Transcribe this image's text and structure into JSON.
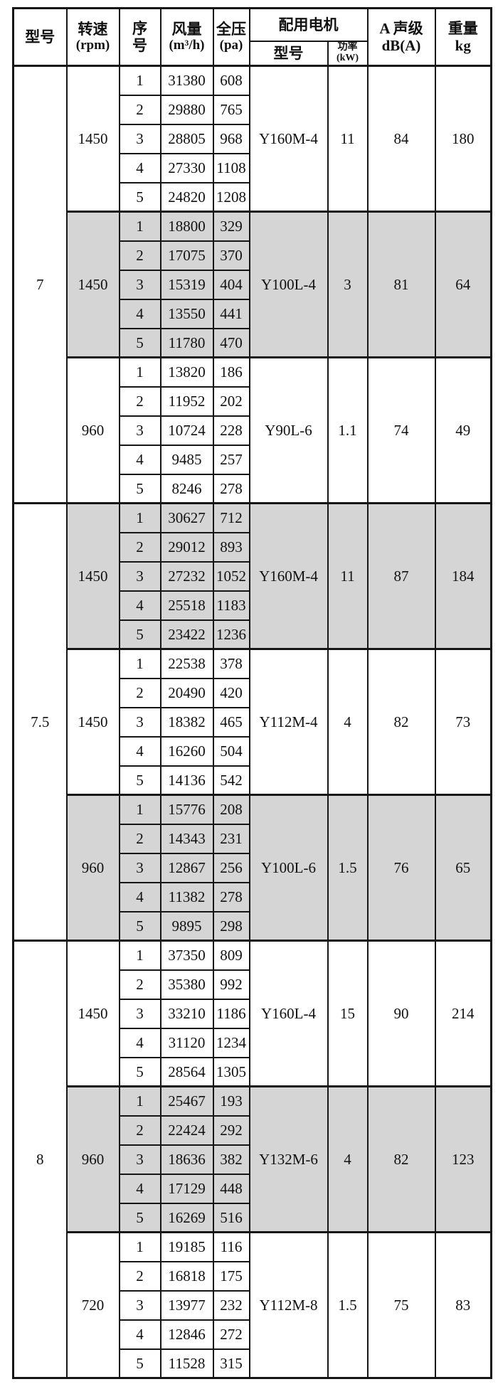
{
  "table": {
    "title_hint": "fan-performance-spec-table",
    "colors": {
      "shade_bg": "#d5d5d5",
      "header_bg": "#d5d5d5",
      "border": "#161616",
      "page_bg": "#ffffff"
    },
    "header": {
      "model": "型号",
      "speed_l1": "转速",
      "speed_l2": "(rpm)",
      "serial_l1": "序",
      "serial_l2": "号",
      "airflow_l1": "风量",
      "airflow_l2": "(m³/h)",
      "pressure_l1": "全压",
      "pressure_l2": "(pa)",
      "motor_group": "配用电机",
      "motor_model": "型号",
      "motor_power_l1": "功率",
      "motor_power_l2": "(kW)",
      "noise_l1": "A 声级",
      "noise_l2": "dB(A)",
      "weight_l1": "重量",
      "weight_l2": "kg"
    },
    "groups": [
      {
        "model": "7",
        "sections": [
          {
            "rpm": "1450",
            "shaded": false,
            "motor": "Y160M-4",
            "power": "11",
            "noise": "84",
            "weight": "180",
            "rows": [
              [
                "1",
                "31380",
                "608"
              ],
              [
                "2",
                "29880",
                "765"
              ],
              [
                "3",
                "28805",
                "968"
              ],
              [
                "4",
                "27330",
                "1108"
              ],
              [
                "5",
                "24820",
                "1208"
              ]
            ]
          },
          {
            "rpm": "1450",
            "shaded": true,
            "motor": "Y100L-4",
            "power": "3",
            "noise": "81",
            "weight": "64",
            "rows": [
              [
                "1",
                "18800",
                "329"
              ],
              [
                "2",
                "17075",
                "370"
              ],
              [
                "3",
                "15319",
                "404"
              ],
              [
                "4",
                "13550",
                "441"
              ],
              [
                "5",
                "11780",
                "470"
              ]
            ]
          },
          {
            "rpm": "960",
            "shaded": false,
            "motor": "Y90L-6",
            "power": "1.1",
            "noise": "74",
            "weight": "49",
            "rows": [
              [
                "1",
                "13820",
                "186"
              ],
              [
                "2",
                "11952",
                "202"
              ],
              [
                "3",
                "10724",
                "228"
              ],
              [
                "4",
                "9485",
                "257"
              ],
              [
                "5",
                "8246",
                "278"
              ]
            ]
          }
        ]
      },
      {
        "model": "7.5",
        "sections": [
          {
            "rpm": "1450",
            "shaded": true,
            "motor": "Y160M-4",
            "power": "11",
            "noise": "87",
            "weight": "184",
            "rows": [
              [
                "1",
                "30627",
                "712"
              ],
              [
                "2",
                "29012",
                "893"
              ],
              [
                "3",
                "27232",
                "1052"
              ],
              [
                "4",
                "25518",
                "1183"
              ],
              [
                "5",
                "23422",
                "1236"
              ]
            ]
          },
          {
            "rpm": "1450",
            "shaded": false,
            "motor": "Y112M-4",
            "power": "4",
            "noise": "82",
            "weight": "73",
            "rows": [
              [
                "1",
                "22538",
                "378"
              ],
              [
                "2",
                "20490",
                "420"
              ],
              [
                "3",
                "18382",
                "465"
              ],
              [
                "4",
                "16260",
                "504"
              ],
              [
                "5",
                "14136",
                "542"
              ]
            ]
          },
          {
            "rpm": "960",
            "shaded": true,
            "motor": "Y100L-6",
            "power": "1.5",
            "noise": "76",
            "weight": "65",
            "rows": [
              [
                "1",
                "15776",
                "208"
              ],
              [
                "2",
                "14343",
                "231"
              ],
              [
                "3",
                "12867",
                "256"
              ],
              [
                "4",
                "11382",
                "278"
              ],
              [
                "5",
                "9895",
                "298"
              ]
            ]
          }
        ]
      },
      {
        "model": "8",
        "sections": [
          {
            "rpm": "1450",
            "shaded": false,
            "motor": "Y160L-4",
            "power": "15",
            "noise": "90",
            "weight": "214",
            "rows": [
              [
                "1",
                "37350",
                "809"
              ],
              [
                "2",
                "35380",
                "992"
              ],
              [
                "3",
                "33210",
                "1186"
              ],
              [
                "4",
                "31120",
                "1234"
              ],
              [
                "5",
                "28564",
                "1305"
              ]
            ]
          },
          {
            "rpm": "960",
            "shaded": true,
            "motor": "Y132M-6",
            "power": "4",
            "noise": "82",
            "weight": "123",
            "rows": [
              [
                "1",
                "25467",
                "193"
              ],
              [
                "2",
                "22424",
                "292"
              ],
              [
                "3",
                "18636",
                "382"
              ],
              [
                "4",
                "17129",
                "448"
              ],
              [
                "5",
                "16269",
                "516"
              ]
            ]
          },
          {
            "rpm": "720",
            "shaded": false,
            "motor": "Y112M-8",
            "power": "1.5",
            "noise": "75",
            "weight": "83",
            "rows": [
              [
                "1",
                "19185",
                "116"
              ],
              [
                "2",
                "16818",
                "175"
              ],
              [
                "3",
                "13977",
                "232"
              ],
              [
                "4",
                "12846",
                "272"
              ],
              [
                "5",
                "11528",
                "315"
              ]
            ]
          }
        ]
      }
    ]
  }
}
